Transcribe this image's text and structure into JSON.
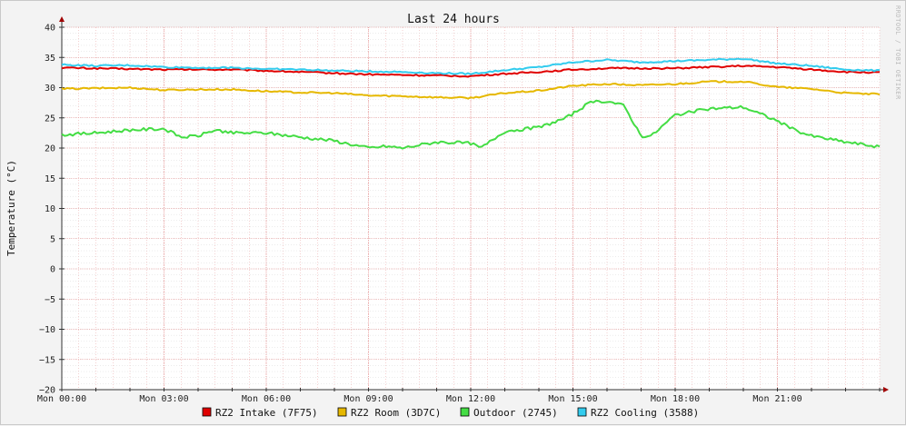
{
  "chart_data": {
    "type": "line",
    "title": "Last 24 hours",
    "ylabel": "Temperature (°C)",
    "watermark": "RRDTOOL / TOBI OETIKER",
    "ylim": [
      -20,
      40
    ],
    "yticks": [
      40,
      35,
      30,
      25,
      20,
      15,
      10,
      5,
      0,
      -5,
      -10,
      -15,
      -20
    ],
    "xlim": [
      0,
      24
    ],
    "xticks": [
      {
        "t": 0,
        "label": "Mon 00:00"
      },
      {
        "t": 3,
        "label": "Mon 03:00"
      },
      {
        "t": 6,
        "label": "Mon 06:00"
      },
      {
        "t": 9,
        "label": "Mon 09:00"
      },
      {
        "t": 12,
        "label": "Mon 12:00"
      },
      {
        "t": 15,
        "label": "Mon 15:00"
      },
      {
        "t": 18,
        "label": "Mon 18:00"
      },
      {
        "t": 21,
        "label": "Mon 21:00"
      }
    ],
    "grid": true,
    "legend_position": "bottom",
    "series": [
      {
        "name": "RZ2 Intake (7F75)",
        "color": "#e00000",
        "points": [
          [
            0,
            33.3
          ],
          [
            1,
            33.2
          ],
          [
            2,
            33.1
          ],
          [
            3,
            33.0
          ],
          [
            4,
            33.0
          ],
          [
            5,
            33.0
          ],
          [
            6,
            32.8
          ],
          [
            7,
            32.6
          ],
          [
            8,
            32.4
          ],
          [
            9,
            32.2
          ],
          [
            10,
            32.1
          ],
          [
            11,
            32.0
          ],
          [
            12,
            31.9
          ],
          [
            13,
            32.3
          ],
          [
            14,
            32.6
          ],
          [
            15,
            33.0
          ],
          [
            16,
            33.2
          ],
          [
            17,
            33.2
          ],
          [
            18,
            33.2
          ],
          [
            19,
            33.4
          ],
          [
            20,
            33.6
          ],
          [
            21,
            33.4
          ],
          [
            22,
            33.0
          ],
          [
            23,
            32.6
          ],
          [
            24,
            32.5
          ]
        ]
      },
      {
        "name": "RZ2 Room (3D7C)",
        "color": "#e6b800",
        "points": [
          [
            0,
            29.8
          ],
          [
            1,
            29.9
          ],
          [
            2,
            30.0
          ],
          [
            3,
            29.6
          ],
          [
            4,
            29.7
          ],
          [
            5,
            29.7
          ],
          [
            6,
            29.4
          ],
          [
            7,
            29.2
          ],
          [
            8,
            29.1
          ],
          [
            9,
            28.7
          ],
          [
            10,
            28.6
          ],
          [
            11,
            28.4
          ],
          [
            12,
            28.3
          ],
          [
            13,
            29.1
          ],
          [
            14,
            29.5
          ],
          [
            15,
            30.3
          ],
          [
            16,
            30.6
          ],
          [
            17,
            30.4
          ],
          [
            18,
            30.6
          ],
          [
            19,
            31.0
          ],
          [
            20,
            31.0
          ],
          [
            21,
            30.1
          ],
          [
            22,
            29.8
          ],
          [
            23,
            29.1
          ],
          [
            24,
            28.9
          ]
        ]
      },
      {
        "name": "Outdoor (2745)",
        "color": "#44dd44",
        "points": [
          [
            0,
            22.2
          ],
          [
            1,
            22.5
          ],
          [
            2,
            23.0
          ],
          [
            3,
            23.2
          ],
          [
            3.5,
            21.8
          ],
          [
            4,
            22.0
          ],
          [
            4.5,
            23.0
          ],
          [
            5,
            22.5
          ],
          [
            6,
            22.5
          ],
          [
            7,
            21.8
          ],
          [
            8,
            21.2
          ],
          [
            9,
            20.0
          ],
          [
            9.5,
            20.3
          ],
          [
            10,
            20.0
          ],
          [
            11,
            21.0
          ],
          [
            12,
            20.8
          ],
          [
            12.3,
            20.0
          ],
          [
            13,
            22.8
          ],
          [
            14,
            23.4
          ],
          [
            14.8,
            25.0
          ],
          [
            15.5,
            27.5
          ],
          [
            16,
            27.8
          ],
          [
            16.5,
            27.0
          ],
          [
            17,
            22.0
          ],
          [
            17.3,
            22.0
          ],
          [
            18,
            25.5
          ],
          [
            19,
            26.5
          ],
          [
            20,
            26.8
          ],
          [
            21,
            24.5
          ],
          [
            21.5,
            23.0
          ],
          [
            22,
            22.0
          ],
          [
            23,
            21.0
          ],
          [
            24,
            20.2
          ]
        ]
      },
      {
        "name": "RZ2 Cooling (3588)",
        "color": "#33ccee",
        "points": [
          [
            0,
            33.8
          ],
          [
            1,
            33.6
          ],
          [
            2,
            33.7
          ],
          [
            3,
            33.4
          ],
          [
            4,
            33.3
          ],
          [
            5,
            33.3
          ],
          [
            6,
            33.1
          ],
          [
            7,
            33.0
          ],
          [
            8,
            32.8
          ],
          [
            9,
            32.7
          ],
          [
            10,
            32.6
          ],
          [
            11,
            32.4
          ],
          [
            12,
            32.3
          ],
          [
            13,
            32.9
          ],
          [
            14,
            33.4
          ],
          [
            15,
            34.2
          ],
          [
            16,
            34.6
          ],
          [
            17,
            34.2
          ],
          [
            18,
            34.4
          ],
          [
            19,
            34.6
          ],
          [
            20,
            34.8
          ],
          [
            21,
            34.0
          ],
          [
            22,
            33.6
          ],
          [
            23,
            33.0
          ],
          [
            24,
            32.8
          ]
        ]
      }
    ]
  }
}
